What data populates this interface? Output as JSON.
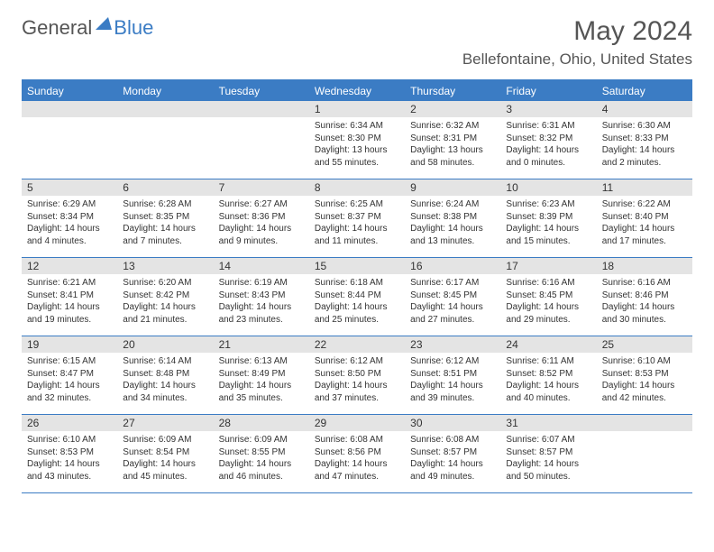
{
  "brand": {
    "general": "General",
    "blue": "Blue"
  },
  "title": "May 2024",
  "location": "Bellefontaine, Ohio, United States",
  "colors": {
    "header_bg": "#3b7cc4",
    "daynum_bg": "#e4e4e4",
    "text": "#333333",
    "page_bg": "#ffffff"
  },
  "weekdays": [
    "Sunday",
    "Monday",
    "Tuesday",
    "Wednesday",
    "Thursday",
    "Friday",
    "Saturday"
  ],
  "weeks": [
    [
      null,
      null,
      null,
      {
        "n": "1",
        "sr": "6:34 AM",
        "ss": "8:30 PM",
        "dl": "13 hours and 55 minutes."
      },
      {
        "n": "2",
        "sr": "6:32 AM",
        "ss": "8:31 PM",
        "dl": "13 hours and 58 minutes."
      },
      {
        "n": "3",
        "sr": "6:31 AM",
        "ss": "8:32 PM",
        "dl": "14 hours and 0 minutes."
      },
      {
        "n": "4",
        "sr": "6:30 AM",
        "ss": "8:33 PM",
        "dl": "14 hours and 2 minutes."
      }
    ],
    [
      {
        "n": "5",
        "sr": "6:29 AM",
        "ss": "8:34 PM",
        "dl": "14 hours and 4 minutes."
      },
      {
        "n": "6",
        "sr": "6:28 AM",
        "ss": "8:35 PM",
        "dl": "14 hours and 7 minutes."
      },
      {
        "n": "7",
        "sr": "6:27 AM",
        "ss": "8:36 PM",
        "dl": "14 hours and 9 minutes."
      },
      {
        "n": "8",
        "sr": "6:25 AM",
        "ss": "8:37 PM",
        "dl": "14 hours and 11 minutes."
      },
      {
        "n": "9",
        "sr": "6:24 AM",
        "ss": "8:38 PM",
        "dl": "14 hours and 13 minutes."
      },
      {
        "n": "10",
        "sr": "6:23 AM",
        "ss": "8:39 PM",
        "dl": "14 hours and 15 minutes."
      },
      {
        "n": "11",
        "sr": "6:22 AM",
        "ss": "8:40 PM",
        "dl": "14 hours and 17 minutes."
      }
    ],
    [
      {
        "n": "12",
        "sr": "6:21 AM",
        "ss": "8:41 PM",
        "dl": "14 hours and 19 minutes."
      },
      {
        "n": "13",
        "sr": "6:20 AM",
        "ss": "8:42 PM",
        "dl": "14 hours and 21 minutes."
      },
      {
        "n": "14",
        "sr": "6:19 AM",
        "ss": "8:43 PM",
        "dl": "14 hours and 23 minutes."
      },
      {
        "n": "15",
        "sr": "6:18 AM",
        "ss": "8:44 PM",
        "dl": "14 hours and 25 minutes."
      },
      {
        "n": "16",
        "sr": "6:17 AM",
        "ss": "8:45 PM",
        "dl": "14 hours and 27 minutes."
      },
      {
        "n": "17",
        "sr": "6:16 AM",
        "ss": "8:45 PM",
        "dl": "14 hours and 29 minutes."
      },
      {
        "n": "18",
        "sr": "6:16 AM",
        "ss": "8:46 PM",
        "dl": "14 hours and 30 minutes."
      }
    ],
    [
      {
        "n": "19",
        "sr": "6:15 AM",
        "ss": "8:47 PM",
        "dl": "14 hours and 32 minutes."
      },
      {
        "n": "20",
        "sr": "6:14 AM",
        "ss": "8:48 PM",
        "dl": "14 hours and 34 minutes."
      },
      {
        "n": "21",
        "sr": "6:13 AM",
        "ss": "8:49 PM",
        "dl": "14 hours and 35 minutes."
      },
      {
        "n": "22",
        "sr": "6:12 AM",
        "ss": "8:50 PM",
        "dl": "14 hours and 37 minutes."
      },
      {
        "n": "23",
        "sr": "6:12 AM",
        "ss": "8:51 PM",
        "dl": "14 hours and 39 minutes."
      },
      {
        "n": "24",
        "sr": "6:11 AM",
        "ss": "8:52 PM",
        "dl": "14 hours and 40 minutes."
      },
      {
        "n": "25",
        "sr": "6:10 AM",
        "ss": "8:53 PM",
        "dl": "14 hours and 42 minutes."
      }
    ],
    [
      {
        "n": "26",
        "sr": "6:10 AM",
        "ss": "8:53 PM",
        "dl": "14 hours and 43 minutes."
      },
      {
        "n": "27",
        "sr": "6:09 AM",
        "ss": "8:54 PM",
        "dl": "14 hours and 45 minutes."
      },
      {
        "n": "28",
        "sr": "6:09 AM",
        "ss": "8:55 PM",
        "dl": "14 hours and 46 minutes."
      },
      {
        "n": "29",
        "sr": "6:08 AM",
        "ss": "8:56 PM",
        "dl": "14 hours and 47 minutes."
      },
      {
        "n": "30",
        "sr": "6:08 AM",
        "ss": "8:57 PM",
        "dl": "14 hours and 49 minutes."
      },
      {
        "n": "31",
        "sr": "6:07 AM",
        "ss": "8:57 PM",
        "dl": "14 hours and 50 minutes."
      },
      null
    ]
  ],
  "labels": {
    "sunrise": "Sunrise: ",
    "sunset": "Sunset: ",
    "daylight": "Daylight: "
  }
}
